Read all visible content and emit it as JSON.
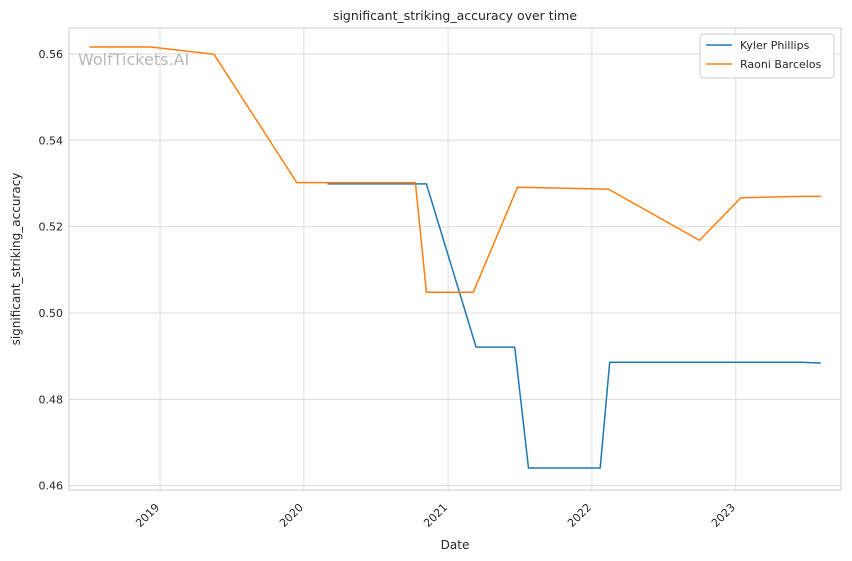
{
  "watermark": "WolfTickets.AI",
  "chart_data": {
    "type": "line",
    "title": "significant_striking_accuracy over time",
    "xlabel": "Date",
    "ylabel": "significant_striking_accuracy",
    "x_ticks": [
      "2019",
      "2020",
      "2021",
      "2022",
      "2023"
    ],
    "y_ticks": [
      "0.46",
      "0.48",
      "0.50",
      "0.52",
      "0.54",
      "0.56"
    ],
    "ylim": [
      0.459,
      0.566
    ],
    "xlim": [
      "2018-05-15",
      "2023-09-25"
    ],
    "grid": true,
    "legend_position": "top-right",
    "series": [
      {
        "name": "Kyler Phillips",
        "color": "#1f77b4",
        "points": [
          {
            "x": "2020-03-01",
            "y": 0.5299
          },
          {
            "x": "2020-11-07",
            "y": 0.5299
          },
          {
            "x": "2021-03-13",
            "y": 0.4921
          },
          {
            "x": "2021-06-19",
            "y": 0.4921
          },
          {
            "x": "2021-07-24",
            "y": 0.4641
          },
          {
            "x": "2022-01-22",
            "y": 0.4641
          },
          {
            "x": "2022-02-15",
            "y": 0.4886
          },
          {
            "x": "2023-06-17",
            "y": 0.4886
          },
          {
            "x": "2023-08-05",
            "y": 0.4884
          }
        ]
      },
      {
        "name": "Raoni Barcelos",
        "color": "#ff7f0e",
        "points": [
          {
            "x": "2018-07-06",
            "y": 0.5616
          },
          {
            "x": "2018-12-08",
            "y": 0.5616
          },
          {
            "x": "2019-05-18",
            "y": 0.5599
          },
          {
            "x": "2019-12-14",
            "y": 0.5302
          },
          {
            "x": "2020-10-10",
            "y": 0.5302
          },
          {
            "x": "2020-11-07",
            "y": 0.5048
          },
          {
            "x": "2021-03-06",
            "y": 0.5048
          },
          {
            "x": "2021-06-26",
            "y": 0.5291
          },
          {
            "x": "2022-02-12",
            "y": 0.5287
          },
          {
            "x": "2022-10-01",
            "y": 0.5168
          },
          {
            "x": "2023-01-14",
            "y": 0.5267
          },
          {
            "x": "2023-06-17",
            "y": 0.527
          },
          {
            "x": "2023-08-05",
            "y": 0.527
          }
        ]
      }
    ]
  }
}
